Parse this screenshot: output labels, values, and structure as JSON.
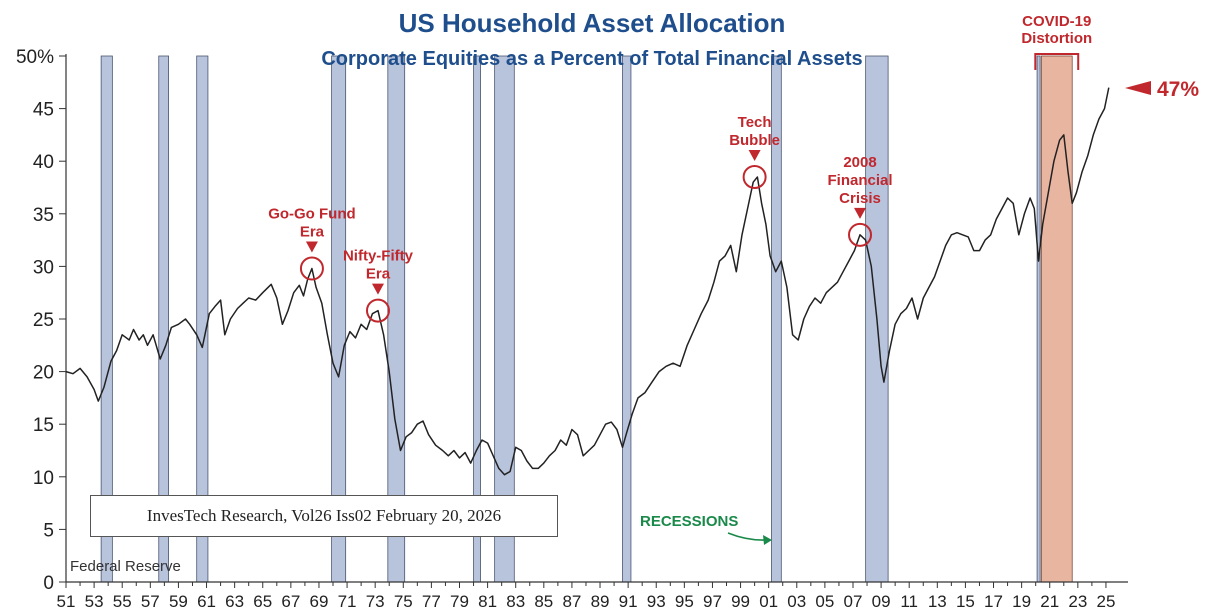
{
  "chart_data": {
    "type": "line",
    "title": "US Household Asset Allocation",
    "subtitle": "Corporate Equities as a Percent of Total Financial Assets",
    "ylim": [
      0,
      50
    ],
    "yticks": [
      {
        "value": 0,
        "label": "0"
      },
      {
        "value": 5,
        "label": "5"
      },
      {
        "value": 10,
        "label": "10"
      },
      {
        "value": 15,
        "label": "15"
      },
      {
        "value": 20,
        "label": "20"
      },
      {
        "value": 25,
        "label": "25"
      },
      {
        "value": 30,
        "label": "30"
      },
      {
        "value": 35,
        "label": "35"
      },
      {
        "value": 40,
        "label": "40"
      },
      {
        "value": 45,
        "label": "45"
      },
      {
        "value": 50,
        "label": "50%"
      }
    ],
    "xlim": [
      1951,
      2026
    ],
    "xticks": [
      {
        "year": 1951,
        "label": "51"
      },
      {
        "year": 1953,
        "label": "53"
      },
      {
        "year": 1955,
        "label": "55"
      },
      {
        "year": 1957,
        "label": "57"
      },
      {
        "year": 1959,
        "label": "59"
      },
      {
        "year": 1961,
        "label": "61"
      },
      {
        "year": 1963,
        "label": "63"
      },
      {
        "year": 1965,
        "label": "65"
      },
      {
        "year": 1967,
        "label": "67"
      },
      {
        "year": 1969,
        "label": "69"
      },
      {
        "year": 1971,
        "label": "71"
      },
      {
        "year": 1973,
        "label": "73"
      },
      {
        "year": 1975,
        "label": "75"
      },
      {
        "year": 1977,
        "label": "77"
      },
      {
        "year": 1979,
        "label": "79"
      },
      {
        "year": 1981,
        "label": "81"
      },
      {
        "year": 1983,
        "label": "83"
      },
      {
        "year": 1985,
        "label": "85"
      },
      {
        "year": 1987,
        "label": "87"
      },
      {
        "year": 1989,
        "label": "89"
      },
      {
        "year": 1991,
        "label": "91"
      },
      {
        "year": 1993,
        "label": "93"
      },
      {
        "year": 1995,
        "label": "95"
      },
      {
        "year": 1997,
        "label": "97"
      },
      {
        "year": 1999,
        "label": "99"
      },
      {
        "year": 2001,
        "label": "01"
      },
      {
        "year": 2003,
        "label": "03"
      },
      {
        "year": 2005,
        "label": "05"
      },
      {
        "year": 2007,
        "label": "07"
      },
      {
        "year": 2009,
        "label": "09"
      },
      {
        "year": 2011,
        "label": "11"
      },
      {
        "year": 2013,
        "label": "13"
      },
      {
        "year": 2015,
        "label": "15"
      },
      {
        "year": 2017,
        "label": "17"
      },
      {
        "year": 2019,
        "label": "19"
      },
      {
        "year": 2021,
        "label": "21"
      },
      {
        "year": 2023,
        "label": "23"
      },
      {
        "year": 2025,
        "label": "25"
      }
    ],
    "recessions": [
      [
        1953.5,
        1954.3
      ],
      [
        1957.6,
        1958.3
      ],
      [
        1960.3,
        1961.1
      ],
      [
        1969.9,
        1970.9
      ],
      [
        1973.9,
        1975.1
      ],
      [
        1980.0,
        1980.5
      ],
      [
        1981.5,
        1982.9
      ],
      [
        1990.6,
        1991.2
      ],
      [
        2001.2,
        2001.9
      ],
      [
        2007.9,
        2009.5
      ],
      [
        2020.1,
        2020.3
      ]
    ],
    "recession_color": "#b8c3dc",
    "distortion": {
      "start": 2020.4,
      "end": 2022.6,
      "color": "#e8b5a0",
      "label": [
        "COVID-19",
        "Distortion"
      ]
    },
    "series": [
      {
        "color": "#222222",
        "points": [
          [
            1951.0,
            20.0
          ],
          [
            1951.5,
            19.8
          ],
          [
            1952.0,
            20.3
          ],
          [
            1952.5,
            19.5
          ],
          [
            1953.0,
            18.3
          ],
          [
            1953.3,
            17.2
          ],
          [
            1953.7,
            18.5
          ],
          [
            1954.2,
            21.0
          ],
          [
            1954.6,
            22.0
          ],
          [
            1955.0,
            23.5
          ],
          [
            1955.5,
            23.0
          ],
          [
            1955.8,
            24.0
          ],
          [
            1956.2,
            23.0
          ],
          [
            1956.5,
            23.5
          ],
          [
            1956.8,
            22.5
          ],
          [
            1957.2,
            23.5
          ],
          [
            1957.7,
            21.2
          ],
          [
            1958.1,
            22.5
          ],
          [
            1958.5,
            24.2
          ],
          [
            1959.0,
            24.5
          ],
          [
            1959.5,
            25.0
          ],
          [
            1959.8,
            24.5
          ],
          [
            1960.3,
            23.5
          ],
          [
            1960.7,
            22.3
          ],
          [
            1961.2,
            25.5
          ],
          [
            1961.6,
            26.2
          ],
          [
            1962.0,
            26.8
          ],
          [
            1962.3,
            23.5
          ],
          [
            1962.7,
            25.0
          ],
          [
            1963.2,
            26.0
          ],
          [
            1963.6,
            26.5
          ],
          [
            1964.0,
            27.0
          ],
          [
            1964.5,
            26.8
          ],
          [
            1965.0,
            27.5
          ],
          [
            1965.6,
            28.3
          ],
          [
            1966.0,
            27.0
          ],
          [
            1966.4,
            24.5
          ],
          [
            1966.8,
            25.8
          ],
          [
            1967.2,
            27.5
          ],
          [
            1967.6,
            28.2
          ],
          [
            1967.9,
            27.2
          ],
          [
            1968.2,
            28.8
          ],
          [
            1968.5,
            29.8
          ],
          [
            1968.8,
            28.0
          ],
          [
            1969.2,
            26.5
          ],
          [
            1969.6,
            23.5
          ],
          [
            1970.0,
            20.8
          ],
          [
            1970.4,
            19.5
          ],
          [
            1970.8,
            22.5
          ],
          [
            1971.2,
            23.8
          ],
          [
            1971.6,
            23.2
          ],
          [
            1972.0,
            24.5
          ],
          [
            1972.4,
            24.0
          ],
          [
            1972.8,
            25.5
          ],
          [
            1973.2,
            25.8
          ],
          [
            1973.6,
            23.5
          ],
          [
            1974.0,
            20.0
          ],
          [
            1974.4,
            15.5
          ],
          [
            1974.8,
            12.5
          ],
          [
            1975.2,
            13.8
          ],
          [
            1975.6,
            14.2
          ],
          [
            1976.0,
            15.0
          ],
          [
            1976.4,
            15.3
          ],
          [
            1976.8,
            14.0
          ],
          [
            1977.3,
            13.0
          ],
          [
            1977.8,
            12.5
          ],
          [
            1978.2,
            12.0
          ],
          [
            1978.6,
            12.5
          ],
          [
            1979.0,
            11.8
          ],
          [
            1979.4,
            12.3
          ],
          [
            1979.8,
            11.3
          ],
          [
            1980.2,
            12.5
          ],
          [
            1980.6,
            13.5
          ],
          [
            1981.0,
            13.2
          ],
          [
            1981.4,
            12.0
          ],
          [
            1981.8,
            10.8
          ],
          [
            1982.2,
            10.2
          ],
          [
            1982.6,
            10.5
          ],
          [
            1983.0,
            12.8
          ],
          [
            1983.4,
            12.5
          ],
          [
            1983.8,
            11.5
          ],
          [
            1984.2,
            10.8
          ],
          [
            1984.6,
            10.8
          ],
          [
            1985.0,
            11.3
          ],
          [
            1985.4,
            12.0
          ],
          [
            1985.8,
            12.5
          ],
          [
            1986.2,
            13.5
          ],
          [
            1986.6,
            13.0
          ],
          [
            1987.0,
            14.5
          ],
          [
            1987.4,
            14.0
          ],
          [
            1987.8,
            12.0
          ],
          [
            1988.2,
            12.5
          ],
          [
            1988.6,
            13.0
          ],
          [
            1989.0,
            14.0
          ],
          [
            1989.4,
            15.0
          ],
          [
            1989.8,
            15.2
          ],
          [
            1990.2,
            14.5
          ],
          [
            1990.6,
            12.8
          ],
          [
            1990.9,
            14.2
          ],
          [
            1991.3,
            16.0
          ],
          [
            1991.7,
            17.5
          ],
          [
            1992.2,
            18.0
          ],
          [
            1992.7,
            19.0
          ],
          [
            1993.2,
            20.0
          ],
          [
            1993.7,
            20.5
          ],
          [
            1994.2,
            20.8
          ],
          [
            1994.7,
            20.5
          ],
          [
            1995.2,
            22.5
          ],
          [
            1995.7,
            24.0
          ],
          [
            1996.2,
            25.5
          ],
          [
            1996.7,
            26.8
          ],
          [
            1997.1,
            28.5
          ],
          [
            1997.5,
            30.5
          ],
          [
            1997.9,
            31.0
          ],
          [
            1998.3,
            32.0
          ],
          [
            1998.7,
            29.5
          ],
          [
            1999.1,
            33.0
          ],
          [
            1999.5,
            35.5
          ],
          [
            1999.9,
            38.0
          ],
          [
            2000.2,
            38.5
          ],
          [
            2000.5,
            36.0
          ],
          [
            2000.8,
            34.0
          ],
          [
            2001.1,
            31.0
          ],
          [
            2001.5,
            29.5
          ],
          [
            2001.9,
            30.5
          ],
          [
            2002.3,
            28.0
          ],
          [
            2002.7,
            23.5
          ],
          [
            2003.1,
            23.0
          ],
          [
            2003.5,
            25.0
          ],
          [
            2003.9,
            26.2
          ],
          [
            2004.3,
            27.0
          ],
          [
            2004.7,
            26.5
          ],
          [
            2005.1,
            27.5
          ],
          [
            2005.5,
            28.0
          ],
          [
            2005.9,
            28.5
          ],
          [
            2006.3,
            29.5
          ],
          [
            2006.7,
            30.5
          ],
          [
            2007.1,
            31.5
          ],
          [
            2007.5,
            33.0
          ],
          [
            2007.9,
            32.5
          ],
          [
            2008.3,
            30.0
          ],
          [
            2008.7,
            25.0
          ],
          [
            2009.0,
            20.5
          ],
          [
            2009.2,
            19.0
          ],
          [
            2009.6,
            22.0
          ],
          [
            2010.0,
            24.5
          ],
          [
            2010.4,
            25.5
          ],
          [
            2010.8,
            26.0
          ],
          [
            2011.2,
            27.0
          ],
          [
            2011.6,
            25.0
          ],
          [
            2012.0,
            27.0
          ],
          [
            2012.4,
            28.0
          ],
          [
            2012.8,
            29.0
          ],
          [
            2013.2,
            30.5
          ],
          [
            2013.6,
            32.0
          ],
          [
            2014.0,
            33.0
          ],
          [
            2014.4,
            33.2
          ],
          [
            2014.8,
            33.0
          ],
          [
            2015.2,
            32.8
          ],
          [
            2015.6,
            31.5
          ],
          [
            2016.0,
            31.5
          ],
          [
            2016.4,
            32.5
          ],
          [
            2016.8,
            33.0
          ],
          [
            2017.2,
            34.5
          ],
          [
            2017.6,
            35.5
          ],
          [
            2018.0,
            36.5
          ],
          [
            2018.4,
            36.0
          ],
          [
            2018.8,
            33.0
          ],
          [
            2019.2,
            35.0
          ],
          [
            2019.6,
            36.5
          ],
          [
            2019.9,
            35.5
          ],
          [
            2020.2,
            30.5
          ],
          [
            2020.5,
            34.0
          ],
          [
            2020.9,
            37.0
          ],
          [
            2021.3,
            40.0
          ],
          [
            2021.7,
            42.0
          ],
          [
            2022.0,
            42.5
          ],
          [
            2022.3,
            39.0
          ],
          [
            2022.6,
            36.0
          ],
          [
            2022.9,
            37.0
          ],
          [
            2023.3,
            39.0
          ],
          [
            2023.7,
            40.5
          ],
          [
            2024.1,
            42.5
          ],
          [
            2024.5,
            44.0
          ],
          [
            2024.9,
            45.0
          ],
          [
            2025.2,
            47.0
          ]
        ]
      }
    ],
    "annotations": [
      {
        "lines": [
          "Go-Go Fund",
          "Era"
        ],
        "x": 1968.5,
        "y": 29.8
      },
      {
        "lines": [
          "Nifty-Fifty",
          "Era"
        ],
        "x": 1973.2,
        "y": 25.8
      },
      {
        "lines": [
          "Tech",
          "Bubble"
        ],
        "x": 2000.0,
        "y": 38.5
      },
      {
        "lines": [
          "2008",
          "Financial",
          "Crisis"
        ],
        "x": 2007.5,
        "y": 33.0
      }
    ],
    "current_value_label": "47%",
    "current_value": 47,
    "recessions_label": "RECESSIONS",
    "source_label": "Federal Reserve"
  },
  "credit": "InvesTech Research, Vol26 Iss02 February 20, 2026"
}
